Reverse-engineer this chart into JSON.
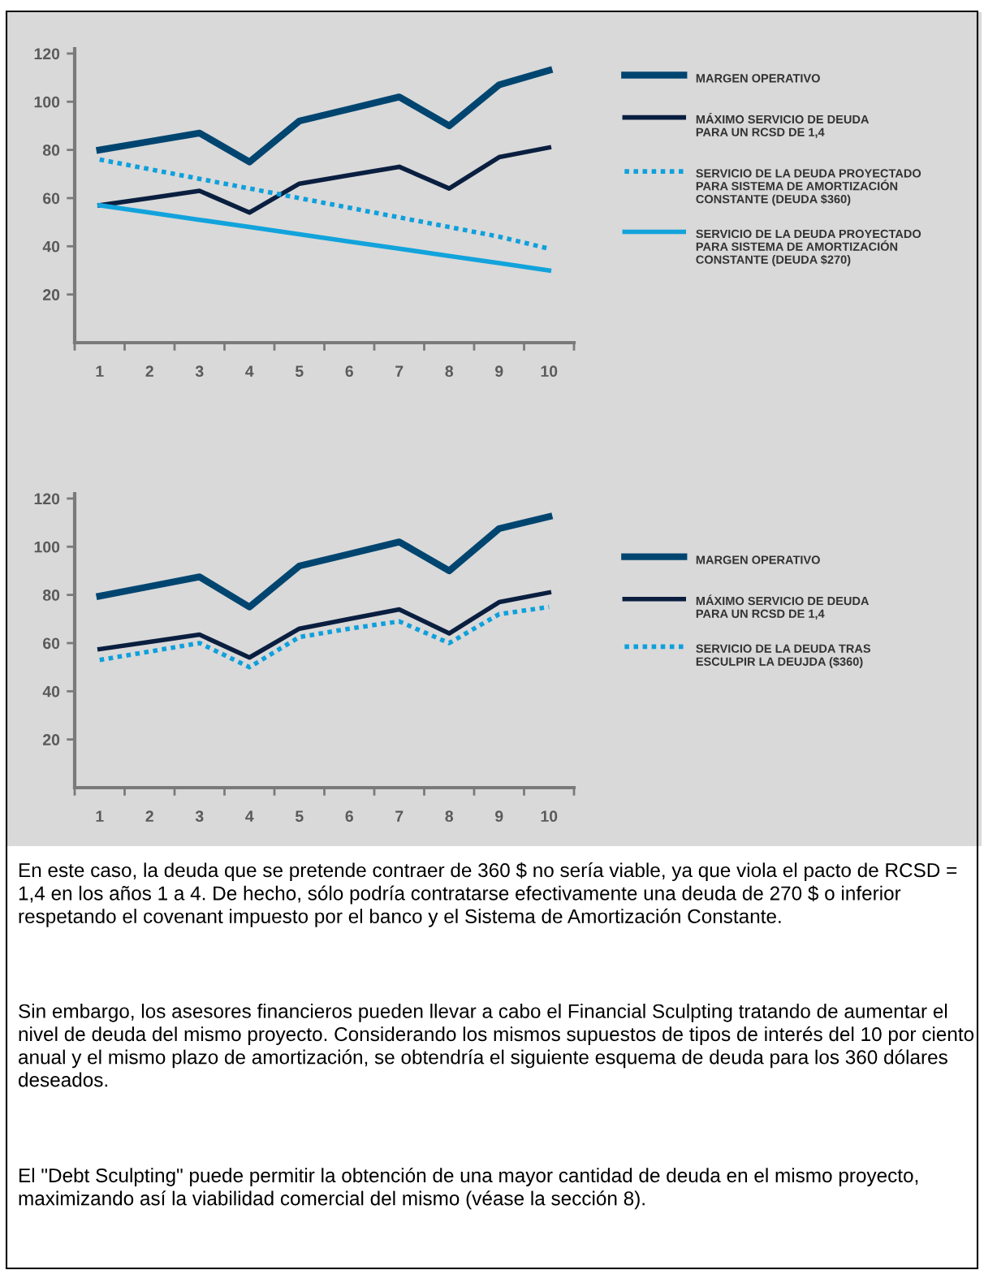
{
  "chart_data": [
    {
      "type": "line",
      "categories": [
        "1",
        "2",
        "3",
        "4",
        "5",
        "6",
        "7",
        "8",
        "9",
        "10"
      ],
      "ylim": [
        0,
        122
      ],
      "yticks": [
        20,
        40,
        60,
        80,
        100,
        120
      ],
      "grid": false,
      "legend": "right",
      "marker": "none",
      "series": [
        {
          "name": "MARGEN OPERATIVO",
          "color": "#004570",
          "line_style": "solid",
          "values": [
            80,
            83.5,
            87,
            75,
            92,
            97,
            102,
            90,
            107,
            113
          ]
        },
        {
          "name": "MÁXIMO SERVICIO DE DEUDA\nPARA UN RCSD DE 1,4",
          "color": "#0a1f40",
          "line_style": "solid",
          "values": [
            57,
            60,
            63,
            54,
            66,
            69.5,
            73,
            64,
            77,
            81
          ]
        },
        {
          "name": "SERVICIO DE LA DEUDA PROYECTADO\nPARA SISTEMA DE AMORTIZACIÓN\nCONSTANTE (DEUDA $360)",
          "color": "#0ea0dc",
          "line_style": "dotted",
          "values": [
            76,
            72,
            68,
            64,
            60,
            56,
            52,
            48,
            44,
            39
          ]
        },
        {
          "name": "SERVICIO DE LA DEUDA PROYECTADO\nPARA SISTEMA DE AMORTIZACIÓN\nCONSTANTE (DEUDA $270)",
          "color": "#12a3dc",
          "line_style": "solid",
          "values": [
            57,
            54,
            51,
            48,
            45,
            42,
            39,
            36,
            33,
            30
          ]
        }
      ]
    },
    {
      "type": "line",
      "categories": [
        "1",
        "2",
        "3",
        "4",
        "5",
        "6",
        "7",
        "8",
        "9",
        "10"
      ],
      "ylim": [
        0,
        122
      ],
      "yticks": [
        20,
        40,
        60,
        80,
        100,
        120
      ],
      "grid": false,
      "legend": "right",
      "marker": "none",
      "series": [
        {
          "name": "MARGEN OPERATIVO",
          "color": "#004570",
          "line_style": "solid",
          "values": [
            79.5,
            83.5,
            87.5,
            75,
            92,
            97,
            102,
            90,
            107.5,
            112.5
          ]
        },
        {
          "name": "MÁXIMO SERVICIO DE DEUDA\nPARA UN RCSD DE 1,4",
          "color": "#0a1f40",
          "line_style": "solid",
          "values": [
            57.5,
            60.5,
            63.5,
            54,
            66,
            70,
            74,
            64,
            77,
            81
          ]
        },
        {
          "name": "SERVICIO DE LA DEUDA TRAS\nESCULPIR LA DEUJDA ($360)",
          "color": "#0ea0dc",
          "line_style": "dotted",
          "values": [
            53,
            56.5,
            60,
            50,
            62.5,
            66,
            69,
            60,
            72,
            75
          ]
        }
      ],
      "annotations": [
        "En este caso, la deuda que se pretende contraer de 360 $ no sería viable, ya que viola el pacto de RCSD = 1,4 en los años 1 a 4. De hecho, sólo podría contratarse efectivamente una deuda de 270 $ o inferior respetando el covenant impuesto por el banco y el Sistema de Amortización Constante.",
        "Sin embargo, los asesores financieros pueden llevar a cabo el Financial Sculpting tratando de aumentar el nivel de deuda del mismo proyecto. Considerando los mismos supuestos de tipos de interés del 10 por ciento anual y el mismo plazo de amortización, se obtendría el siguiente esquema de deuda para los 360 dólares deseados.",
        "El \"Debt Sculpting\" puede permitir la obtención de una mayor cantidad de deuda en el mismo proyecto, maximizando así la viabilidad comercial del mismo (véase la sección 8)."
      ]
    }
  ]
}
